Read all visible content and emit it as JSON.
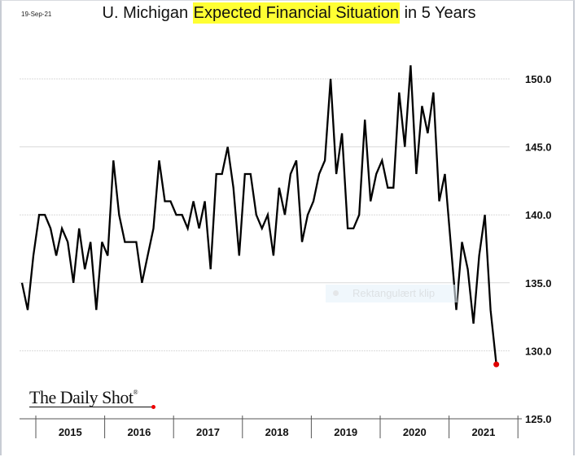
{
  "header": {
    "date": "19-Sep-21",
    "title_before": "U. Michigan ",
    "title_highlight": "Expected Financial Situation",
    "title_after": " in 5 Years"
  },
  "branding": {
    "logo_text": "The Daily Shot",
    "logo_mark": "®"
  },
  "overlay": {
    "label": "Rektangulært klip"
  },
  "chart_data": {
    "type": "line",
    "title": "U. Michigan Expected Financial Situation in 5 Years",
    "xlabel": "",
    "ylabel": "",
    "ylim": [
      125,
      152
    ],
    "yticks": [
      125,
      130,
      135,
      140,
      145,
      150
    ],
    "ytick_labels": [
      "125.0",
      "130.0",
      "135.0",
      "140.0",
      "145.0",
      "150.0"
    ],
    "y_axis_side": "right",
    "grid": true,
    "x_start": "2014-10",
    "frequency": "monthly",
    "x_categories": [
      "2015",
      "2016",
      "2017",
      "2018",
      "2019",
      "2020",
      "2021"
    ],
    "series": [
      {
        "name": "Expected Financial Situation in 5 Years",
        "color": "#000000",
        "values": [
          135,
          133,
          137,
          140,
          140,
          139,
          137,
          139,
          138,
          135,
          139,
          136,
          138,
          133,
          138,
          137,
          144,
          140,
          138,
          138,
          138,
          135,
          137,
          139,
          144,
          141,
          141,
          140,
          140,
          139,
          141,
          139,
          141,
          136,
          143,
          143,
          145,
          142,
          137,
          143,
          143,
          140,
          139,
          140,
          137,
          142,
          140,
          143,
          144,
          138,
          140,
          141,
          143,
          144,
          150,
          143,
          146,
          139,
          139,
          140,
          147,
          141,
          143,
          144,
          142,
          142,
          149,
          145,
          151,
          143,
          148,
          146,
          149,
          141,
          143,
          138,
          133,
          138,
          136,
          132,
          137,
          140,
          133,
          129
        ]
      }
    ],
    "last_point_marker": {
      "color": "#e00000",
      "value": 129
    }
  }
}
